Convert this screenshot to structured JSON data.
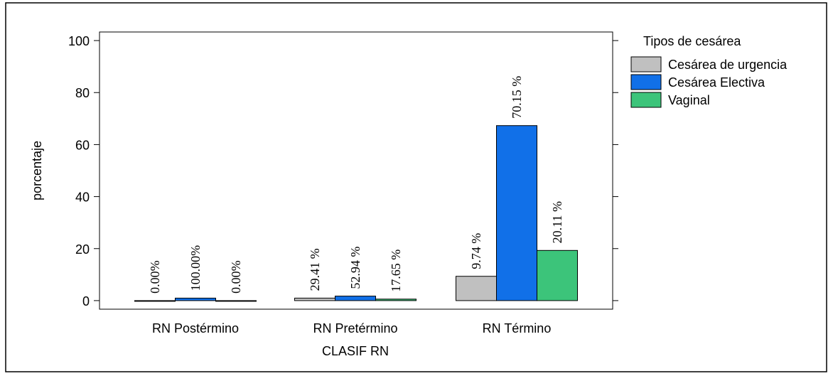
{
  "chart_data": {
    "type": "bar",
    "x_label": "CLASIF RN",
    "y_label": "porcentaje",
    "legend_title": "Tipos de cesárea",
    "categories": [
      "RN Postérmino",
      "RN Pretérmino",
      "RN Término"
    ],
    "series": [
      {
        "name": "Cesárea de urgencia",
        "color": "#c0c0c0",
        "values": [
          0,
          0.96,
          9.35
        ],
        "labels": [
          "0.00%",
          "29.41 %",
          "9.74 %"
        ]
      },
      {
        "name": "Cesárea Electiva",
        "color": "#1170e8",
        "values": [
          0.96,
          1.73,
          67.3
        ],
        "labels": [
          "100.00%",
          "52.94 %",
          "70.15 %"
        ]
      },
      {
        "name": "Vaginal",
        "color": "#3cc47a",
        "values": [
          0,
          0.58,
          19.3
        ],
        "labels": [
          "0.00%",
          "17.65 %",
          "20.11 %"
        ]
      }
    ],
    "ylim": [
      -3.3,
      103.3
    ],
    "yticks": [
      0,
      20,
      40,
      60,
      80,
      100
    ],
    "legend": "right"
  }
}
